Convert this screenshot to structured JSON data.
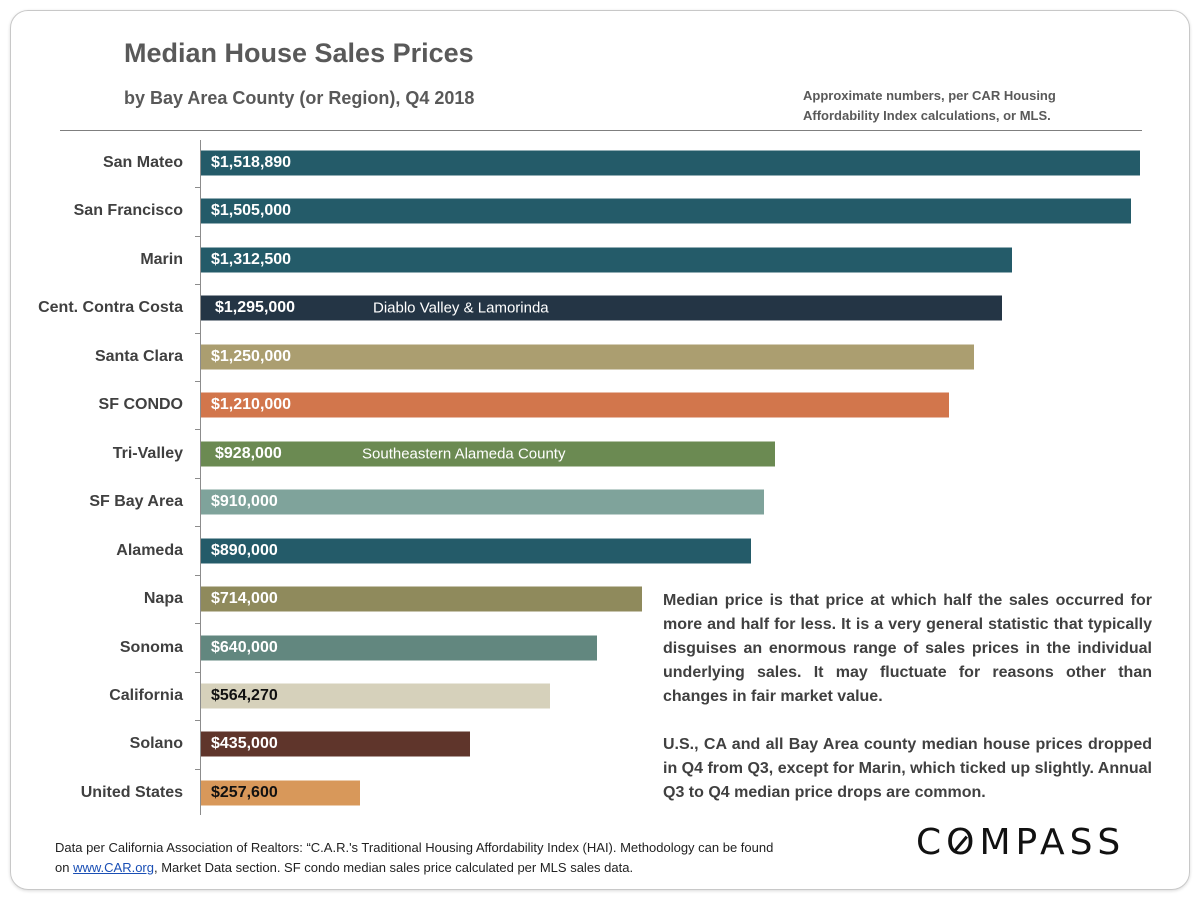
{
  "chart_data": {
    "type": "bar",
    "orientation": "horizontal",
    "title": "Median House Sales Prices",
    "subtitle": "by Bay Area County (or Region), Q4 2018",
    "note_lines": [
      "Approximate numbers, per CAR Housing",
      "Affordability Index calculations,  or MLS."
    ],
    "categories": [
      "San Mateo",
      "San Francisco",
      "Marin",
      "Cent. Contra Costa",
      "Santa Clara",
      "SF CONDO",
      "Tri-Valley",
      "SF Bay Area",
      "Alameda",
      "Napa",
      "Sonoma",
      "California",
      "Solano",
      "United States"
    ],
    "values": [
      1518890,
      1505000,
      1312500,
      1295000,
      1250000,
      1210000,
      928000,
      910000,
      890000,
      714000,
      640000,
      564270,
      435000,
      257600
    ],
    "value_labels": [
      "$1,518,890",
      "$1,505,000",
      "$1,312,500",
      "$1,295,000",
      "$1,250,000",
      "$1,210,000",
      "$928,000",
      "$910,000",
      "$890,000",
      "$714,000",
      "$640,000",
      "$564,270",
      "$435,000",
      "$257,600"
    ],
    "bar_annotations": {
      "3": "Diablo Valley & Lamorinda",
      "6": "Southeastern Alameda County"
    },
    "colors": [
      "#245b69",
      "#245b69",
      "#245b69",
      "#243545",
      "#ab9e70",
      "#d2764c",
      "#6b8a52",
      "#7fa39b",
      "#245b69",
      "#8f8a5c",
      "#62877f",
      "#d6d1bb",
      "#5f352b",
      "#d8985a"
    ],
    "label_colors": [
      "#ffffff",
      "#ffffff",
      "#ffffff",
      "#ffffff",
      "#ffffff",
      "#ffffff",
      "#ffffff",
      "#ffffff",
      "#ffffff",
      "#ffffff",
      "#ffffff",
      "#111111",
      "#ffffff",
      "#111111"
    ],
    "xlim": [
      0,
      1518890
    ],
    "grid": false,
    "legend": "none"
  },
  "commentary": {
    "p1": "Median price is that price at which half the sales occurred for more and half for less. It is a very general statistic that typically disguises an enormous range of sales prices in the individual underlying sales. It may fluctuate for reasons other than changes in fair market value.",
    "p2": "U.S., CA and all Bay Area county median house prices dropped in Q4 from Q3, except for Marin, which ticked up slightly. Annual Q3 to Q4 median price drops are common."
  },
  "footer": {
    "line1": "Data per California Association of Realtors: “C.A.R.'s Traditional Housing Affordability Index (HAI). Methodology can be found",
    "line2_prefix": "on ",
    "link": "www.CAR.org",
    "line2_suffix": ",  Market Data section. SF condo median sales price calculated per MLS sales data."
  },
  "logo": "COMPASS"
}
